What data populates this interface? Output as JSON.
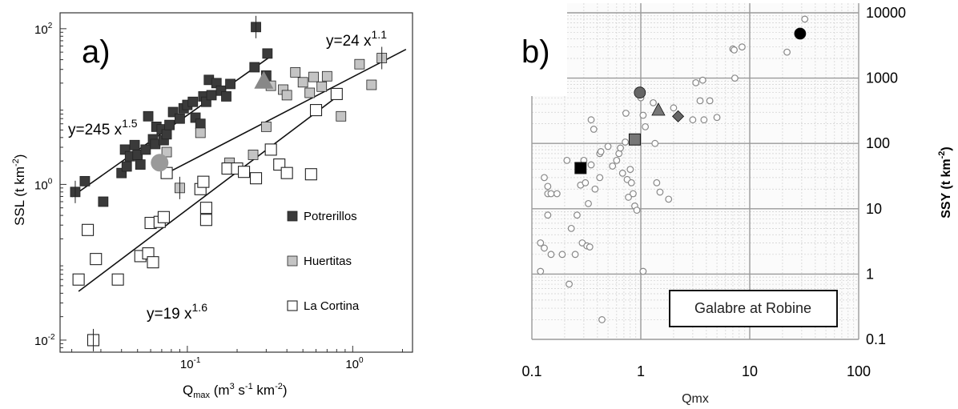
{
  "chart_data": [
    {
      "type": "scatter",
      "panel_label": "a)",
      "xlabel_main": "Q",
      "xlabel_sub": "max",
      "xlabel_units": " (m",
      "xlabel_sup1": "3",
      "xlabel_mid": " s",
      "xlabel_sup2": "-1",
      "xlabel_mid2": " km",
      "xlabel_sup3": "-2",
      "xlabel_end": ")",
      "ylabel_main": "SSL (t km",
      "ylabel_sup": "-2",
      "ylabel_end": ")",
      "xscale": "log",
      "yscale": "log",
      "xlim": [
        0.017,
        2.3
      ],
      "ylim": [
        0.007,
        160
      ],
      "x_ticks": [
        {
          "value": 0.1,
          "base": "10",
          "exp": "-1"
        },
        {
          "value": 1,
          "base": "10",
          "exp": "0"
        }
      ],
      "y_ticks": [
        {
          "value": 0.01,
          "base": "10",
          "exp": "-2"
        },
        {
          "value": 1,
          "base": "10",
          "exp": "0"
        },
        {
          "value": 100,
          "base": "10",
          "exp": "2"
        }
      ],
      "legend_position": "bottom-right",
      "series": [
        {
          "name": "Potrerillos",
          "marker": "square",
          "color": "#3a3a3a",
          "points": [
            [
              0.021,
              0.8
            ],
            [
              0.024,
              1.1
            ],
            [
              0.031,
              0.6
            ],
            [
              0.04,
              1.4
            ],
            [
              0.042,
              2.8
            ],
            [
              0.043,
              1.7
            ],
            [
              0.045,
              2.3
            ],
            [
              0.048,
              3.2
            ],
            [
              0.05,
              2.4
            ],
            [
              0.052,
              1.8
            ],
            [
              0.056,
              2.8
            ],
            [
              0.058,
              7.5
            ],
            [
              0.062,
              3.8
            ],
            [
              0.064,
              3.3
            ],
            [
              0.065,
              5.5
            ],
            [
              0.07,
              5.1
            ],
            [
              0.072,
              3.7
            ],
            [
              0.075,
              4.4
            ],
            [
              0.078,
              5.8
            ],
            [
              0.082,
              8.5
            ],
            [
              0.09,
              7.0
            ],
            [
              0.095,
              9.5
            ],
            [
              0.1,
              10.5
            ],
            [
              0.108,
              11.5
            ],
            [
              0.112,
              7.2
            ],
            [
              0.12,
              6.0
            ],
            [
              0.125,
              13.5
            ],
            [
              0.13,
              11.5
            ],
            [
              0.135,
              22.0
            ],
            [
              0.14,
              14.0
            ],
            [
              0.15,
              20.0
            ],
            [
              0.16,
              16.0
            ],
            [
              0.172,
              13.5
            ],
            [
              0.182,
              19.5
            ],
            [
              0.255,
              32.0
            ],
            [
              0.26,
              105.0
            ],
            [
              0.3,
              25.0
            ],
            [
              0.305,
              48.0
            ]
          ]
        },
        {
          "name": "Huertitas",
          "marker": "square",
          "color": "#c4c4c4",
          "points": [
            [
              0.075,
              2.6
            ],
            [
              0.09,
              0.9
            ],
            [
              0.12,
              4.6
            ],
            [
              0.18,
              1.9
            ],
            [
              0.25,
              2.4
            ],
            [
              0.3,
              5.5
            ],
            [
              0.32,
              18.5
            ],
            [
              0.38,
              16.5
            ],
            [
              0.4,
              14.0
            ],
            [
              0.45,
              27.5
            ],
            [
              0.5,
              20.5
            ],
            [
              0.55,
              15.0
            ],
            [
              0.58,
              24.0
            ],
            [
              0.65,
              18.0
            ],
            [
              0.7,
              24.5
            ],
            [
              0.85,
              7.5
            ],
            [
              1.1,
              35.0
            ],
            [
              1.3,
              19.0
            ],
            [
              1.5,
              42.0
            ]
          ]
        },
        {
          "name": "La Cortina",
          "marker": "open-square",
          "color": "#ffffff",
          "points": [
            [
              0.022,
              0.06
            ],
            [
              0.028,
              0.11
            ],
            [
              0.025,
              0.26
            ],
            [
              0.027,
              0.01
            ],
            [
              0.038,
              0.06
            ],
            [
              0.052,
              0.12
            ],
            [
              0.058,
              0.13
            ],
            [
              0.06,
              0.32
            ],
            [
              0.062,
              0.1
            ],
            [
              0.068,
              0.33
            ],
            [
              0.072,
              0.38
            ],
            [
              0.075,
              1.4
            ],
            [
              0.12,
              0.87
            ],
            [
              0.125,
              1.08
            ],
            [
              0.13,
              0.35
            ],
            [
              0.13,
              0.5
            ],
            [
              0.175,
              1.6
            ],
            [
              0.2,
              1.6
            ],
            [
              0.22,
              1.45
            ],
            [
              0.26,
              1.2
            ],
            [
              0.32,
              2.8
            ],
            [
              0.36,
              1.8
            ],
            [
              0.4,
              1.4
            ],
            [
              0.56,
              1.35
            ],
            [
              0.6,
              9.0
            ],
            [
              0.8,
              14.5
            ]
          ]
        },
        {
          "name": "",
          "marker": "circle",
          "color": "#9a9a9a",
          "points": [
            [
              0.068,
              1.9
            ]
          ]
        },
        {
          "name": "",
          "marker": "triangle",
          "color": "#888888",
          "points": [
            [
              0.29,
              21.0
            ]
          ]
        }
      ],
      "fit_lines": [
        {
          "coef": 245,
          "exp": 1.5,
          "x_range": [
            0.02,
            0.32
          ],
          "label_base": "y=245 x",
          "label_exp": "1.5"
        },
        {
          "coef": 24,
          "exp": 1.1,
          "x_range": [
            0.07,
            2.1
          ],
          "label_base": "y=24 x",
          "label_exp": "1.1"
        },
        {
          "coef": 19,
          "exp": 1.6,
          "x_range": [
            0.022,
            0.82
          ],
          "label_base": "y=19 x",
          "label_exp": "1.6"
        }
      ]
    },
    {
      "type": "scatter",
      "panel_label": "b)",
      "xlabel": "Qmx",
      "ylabel_main": "SSY (t km",
      "ylabel_sup": "-2",
      "ylabel_end": ")",
      "xscale": "log",
      "yscale": "log",
      "xlim": [
        0.1,
        100
      ],
      "ylim": [
        0.1,
        10000
      ],
      "x_ticks": [
        "0.1",
        "1",
        "10",
        "100"
      ],
      "y_ticks": [
        "0.1",
        "1",
        "10",
        "100",
        "1000",
        "10000"
      ],
      "grid": true,
      "annotation": "Galabre at Robine",
      "series": [
        {
          "name": "",
          "marker": "open-circle",
          "color": "#888888",
          "points": [
            [
              0.12,
              1.1
            ],
            [
              0.12,
              3
            ],
            [
              0.13,
              30
            ],
            [
              0.13,
              2.5
            ],
            [
              0.14,
              17
            ],
            [
              0.14,
              22
            ],
            [
              0.14,
              8
            ],
            [
              0.15,
              17
            ],
            [
              0.15,
              2
            ],
            [
              0.17,
              17
            ],
            [
              0.19,
              2
            ],
            [
              0.21,
              55
            ],
            [
              0.22,
              0.7
            ],
            [
              0.23,
              5
            ],
            [
              0.25,
              2
            ],
            [
              0.26,
              8
            ],
            [
              0.28,
              23
            ],
            [
              0.29,
              3
            ],
            [
              0.3,
              55
            ],
            [
              0.31,
              25
            ],
            [
              0.32,
              2.7
            ],
            [
              0.33,
              12
            ],
            [
              0.34,
              2.6
            ],
            [
              0.35,
              47
            ],
            [
              0.35,
              230
            ],
            [
              0.37,
              165
            ],
            [
              0.38,
              20
            ],
            [
              0.42,
              70
            ],
            [
              0.42,
              30
            ],
            [
              0.43,
              75
            ],
            [
              0.44,
              0.2
            ],
            [
              0.5,
              90
            ],
            [
              0.55,
              45
            ],
            [
              0.6,
              55
            ],
            [
              0.63,
              70
            ],
            [
              0.65,
              85
            ],
            [
              0.68,
              35
            ],
            [
              0.72,
              105
            ],
            [
              0.73,
              290
            ],
            [
              0.75,
              28
            ],
            [
              0.77,
              15
            ],
            [
              0.8,
              40
            ],
            [
              0.82,
              25
            ],
            [
              0.85,
              17
            ],
            [
              0.88,
              11
            ],
            [
              0.92,
              9.5
            ],
            [
              0.96,
              620
            ],
            [
              1.05,
              1.1
            ],
            [
              1.0,
              500
            ],
            [
              1.05,
              270
            ],
            [
              1.1,
              180
            ],
            [
              1.3,
              420
            ],
            [
              1.35,
              100
            ],
            [
              1.4,
              25
            ],
            [
              1.5,
              18
            ],
            [
              1.8,
              14
            ],
            [
              2.0,
              350
            ],
            [
              3.0,
              230
            ],
            [
              3.2,
              850
            ],
            [
              3.5,
              450
            ],
            [
              3.7,
              930
            ],
            [
              3.8,
              230
            ],
            [
              4.3,
              450
            ],
            [
              5.0,
              250
            ],
            [
              7.0,
              2800
            ],
            [
              7.2,
              2700
            ],
            [
              7.3,
              1000
            ],
            [
              8.5,
              3000
            ],
            [
              22,
              2500
            ],
            [
              32,
              8000
            ]
          ]
        },
        {
          "name": "",
          "marker": "filled-square",
          "color": "#000000",
          "points": [
            [
              0.28,
              42
            ]
          ]
        },
        {
          "name": "",
          "marker": "filled-square",
          "color": "#777777",
          "points": [
            [
              0.88,
              115
            ]
          ]
        },
        {
          "name": "",
          "marker": "filled-circle",
          "color": "#666666",
          "points": [
            [
              0.98,
              600
            ]
          ]
        },
        {
          "name": "",
          "marker": "filled-triangle",
          "color": "#777777",
          "points": [
            [
              1.45,
              320
            ]
          ]
        },
        {
          "name": "",
          "marker": "filled-diamond",
          "color": "#666666",
          "points": [
            [
              2.2,
              260
            ]
          ]
        },
        {
          "name": "",
          "marker": "filled-circle",
          "color": "#000000",
          "points": [
            [
              29,
              4800
            ]
          ]
        }
      ]
    }
  ]
}
